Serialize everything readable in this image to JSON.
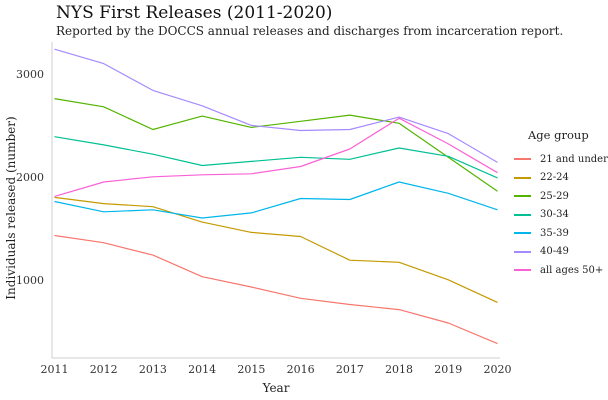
{
  "chart_data": {
    "type": "line",
    "title": "NYS First Releases (2011-2020)",
    "subtitle": "Reported by the DOCCS annual releases and discharges from incarceration report.",
    "xlabel": "Year",
    "ylabel": "Individuals released (number)",
    "x": [
      2011,
      2012,
      2013,
      2014,
      2015,
      2016,
      2017,
      2018,
      2019,
      2020
    ],
    "xlim": [
      2010.95,
      2020.05
    ],
    "ylim": [
      240,
      3310
    ],
    "yticks": [
      1000,
      2000,
      3000
    ],
    "grid": false,
    "legend": {
      "title": "Age group",
      "position": "right"
    },
    "series": [
      {
        "name": "21 and under",
        "color": "#F8766D",
        "values": [
          1430,
          1360,
          1240,
          1030,
          930,
          820,
          760,
          710,
          580,
          380
        ]
      },
      {
        "name": "22-24",
        "color": "#C49A00",
        "values": [
          1800,
          1740,
          1710,
          1560,
          1460,
          1420,
          1190,
          1170,
          1000,
          780
        ]
      },
      {
        "name": "25-29",
        "color": "#53B400",
        "values": [
          2760,
          2680,
          2460,
          2590,
          2480,
          2540,
          2600,
          2520,
          2190,
          1860
        ]
      },
      {
        "name": "30-34",
        "color": "#00C094",
        "values": [
          2390,
          2310,
          2220,
          2110,
          2150,
          2190,
          2170,
          2280,
          2200,
          1990
        ]
      },
      {
        "name": "35-39",
        "color": "#00B6EB",
        "values": [
          1760,
          1660,
          1680,
          1600,
          1650,
          1790,
          1780,
          1950,
          1840,
          1680
        ]
      },
      {
        "name": "40-49",
        "color": "#A58AFF",
        "values": [
          3240,
          3100,
          2840,
          2690,
          2500,
          2450,
          2460,
          2580,
          2420,
          2140
        ]
      },
      {
        "name": "all ages 50+",
        "color": "#FB61D7",
        "values": [
          1810,
          1950,
          2000,
          2020,
          2030,
          2100,
          2270,
          2570,
          2320,
          2040
        ]
      }
    ]
  }
}
